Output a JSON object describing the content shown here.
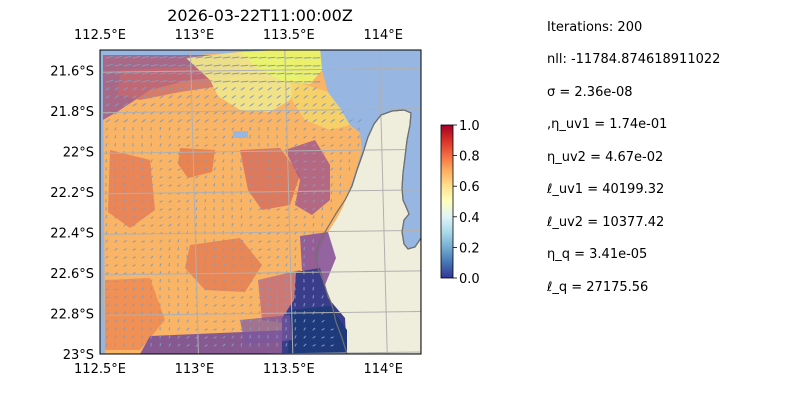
{
  "map": {
    "title": "2026-03-22T11:00:00Z",
    "lon_top_labels": [
      "112.5°E",
      "113°E",
      "113.5°E",
      "114°E"
    ],
    "lon_bottom_labels": [
      "112.5°E",
      "113°E",
      "113.5°E",
      "114°E"
    ],
    "lat_labels": [
      "21.6°S",
      "21.8°S",
      "22°S",
      "22.2°S",
      "22.4°S",
      "22.6°S",
      "22.8°S",
      "23°S"
    ],
    "lon_ticks": [
      112.5,
      113.0,
      113.5,
      114.0
    ],
    "lat_ticks": [
      -21.6,
      -21.8,
      -22.0,
      -22.2,
      -22.4,
      -22.6,
      -22.8,
      -23.0
    ],
    "extent": {
      "lon_min": 112.5,
      "lon_max": 114.2,
      "lat_min": -23.0,
      "lat_max": -21.5
    },
    "colors": {
      "ocean": "#97b6e1",
      "land": "#efeedc",
      "coast": "#707070",
      "grid": "#b0b0b0",
      "arrows": "#7f9bc4"
    }
  },
  "colorbar": {
    "ticks": [
      "0.0",
      "0.2",
      "0.4",
      "0.6",
      "0.8",
      "1.0"
    ],
    "range": [
      0.0,
      1.0
    ],
    "colormap": "RdYlBu_r"
  },
  "stats": [
    "Iterations: 200",
    "nll: -11784.874618911022",
    "σ = 2.36e-08",
    ",η_uv1 = 1.74e-01",
    "η_uv2 = 4.67e-02",
    "ℓ_uv1 = 40199.32",
    "ℓ_uv2 = 10377.42",
    "η_q = 3.41e-05",
    "ℓ_q = 27175.56"
  ]
}
